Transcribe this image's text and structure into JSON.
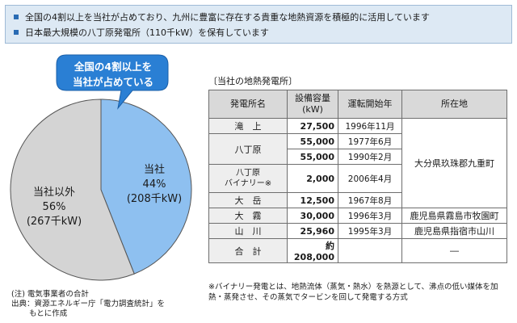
{
  "bullets": [
    "全国の4割以上を当社が占めており、九州に豊富に存在する貴重な地熱資源を積極的に活用しています",
    "日本最大規模の八丁原発電所（110千kW）を保有しています"
  ],
  "callout": {
    "line1": "全国の4割以上を",
    "line2": "当社が占めている"
  },
  "chart_data": {
    "type": "pie",
    "slices": [
      {
        "name": "当社",
        "percent": 44,
        "amount": "(208千kW)",
        "color": "#8ec0f0"
      },
      {
        "name": "当社以外",
        "percent": 56,
        "amount": "(267千kW)",
        "color": "#d4d4d4"
      }
    ]
  },
  "labels": {
    "ours_name": "当社",
    "ours_pct": "44%",
    "ours_amt": "(208千kW)",
    "other_name": "当社以外",
    "other_pct": "56%",
    "other_amt": "(267千kW)"
  },
  "table": {
    "title": "〔当社の地熱発電所〕",
    "headers": {
      "name": "発電所名",
      "cap1": "設備容量",
      "cap2": "(kW)",
      "date": "運転開始年",
      "loc": "所在地"
    },
    "rows": [
      {
        "name": "滝　上",
        "cap": "27,500",
        "date": "1996年11月"
      },
      {
        "name": "八丁原",
        "cap": "55,000",
        "date": "1977年6月"
      },
      {
        "cap": "55,000",
        "date": "1990年2月"
      },
      {
        "name": "八丁原",
        "sub": "バイナリー※",
        "cap": "2,000",
        "date": "2006年4月"
      },
      {
        "name": "大　岳",
        "cap": "12,500",
        "date": "1967年8月"
      },
      {
        "name": "大　霧",
        "cap": "30,000",
        "date": "1996年3月",
        "loc": "鹿児島県霧島市牧園町"
      },
      {
        "name": "山　川",
        "cap": "25,960",
        "date": "1995年3月",
        "loc": "鹿児島県指宿市山川"
      },
      {
        "name": "合　計",
        "cap": "約208,000",
        "loc": "―"
      }
    ],
    "oita_loc": "大分県玖珠郡九重町"
  },
  "footnote": "※バイナリー発電とは、地熱流体（蒸気・熱水）を熱源として、沸点の低い媒体を加熱・蒸発させ、その蒸気でタービンを回して発電する方式",
  "source": {
    "note": "(注) 電気事業者の合計",
    "line1": "出典：資源エネルギー庁「電力調査統計」を",
    "line2": "もとに作成"
  }
}
